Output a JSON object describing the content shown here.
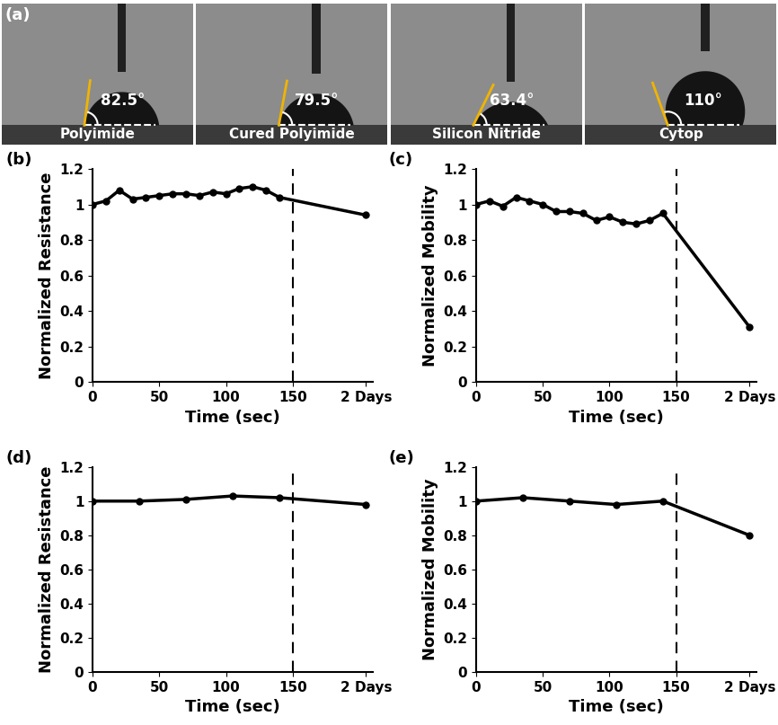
{
  "contact_angles": {
    "panel": "(a)",
    "samples": [
      {
        "name": "Polyimide",
        "angle": {
          "value": 82.5,
          "label": "82.5°"
        }
      },
      {
        "name": "Cured Polyimide",
        "angle": {
          "value": 79.5,
          "label": "79.5°"
        }
      },
      {
        "name": "Silicon Nitride",
        "angle": {
          "value": 63.4,
          "label": "63.4°"
        }
      },
      {
        "name": "Cytop",
        "angle": {
          "value": 110,
          "label": "110°"
        }
      }
    ]
  },
  "chart_data": [
    {
      "type": "line",
      "panel": "(b)",
      "x_label": "Time (sec)",
      "y_label": "Normalized Resistance",
      "x": [
        0,
        10,
        20,
        30,
        40,
        50,
        60,
        70,
        80,
        90,
        100,
        110,
        120,
        130,
        140,
        205
      ],
      "values": [
        1.0,
        1.02,
        1.08,
        1.03,
        1.04,
        1.05,
        1.06,
        1.06,
        1.05,
        1.07,
        1.06,
        1.09,
        1.1,
        1.08,
        1.04,
        0.94
      ],
      "color": "#000000",
      "marker": "o",
      "line_style": "solid",
      "dashed_line_x": 150,
      "xlim": [
        0,
        210
      ],
      "xticks": [
        0,
        50,
        100,
        150,
        {
          "value": 205,
          "label": "2 Days"
        }
      ],
      "ylim": [
        0,
        1.2
      ],
      "yticks": [
        0,
        0.2,
        0.4,
        0.6,
        0.8,
        1,
        1.2
      ],
      "grid": false
    },
    {
      "type": "line",
      "panel": "(c)",
      "x_label": "Time (sec)",
      "y_label": "Normalized Mobility",
      "x": [
        0,
        10,
        20,
        30,
        40,
        50,
        60,
        70,
        80,
        90,
        100,
        110,
        120,
        130,
        140,
        205
      ],
      "values": [
        1.0,
        1.02,
        0.99,
        1.04,
        1.02,
        1.0,
        0.96,
        0.96,
        0.95,
        0.91,
        0.93,
        0.9,
        0.89,
        0.91,
        0.95,
        0.31
      ],
      "color": "#000000",
      "marker": "o",
      "line_style": "solid",
      "dashed_line_x": 150,
      "xlim": [
        0,
        210
      ],
      "xticks": [
        0,
        50,
        100,
        150,
        {
          "value": 205,
          "label": "2 Days"
        }
      ],
      "ylim": [
        0,
        1.2
      ],
      "yticks": [
        0,
        0.2,
        0.4,
        0.6,
        0.8,
        1,
        1.2
      ],
      "grid": false
    },
    {
      "type": "line",
      "panel": "(d)",
      "x_label": "Time (sec)",
      "y_label": "Normalized Resistance",
      "x": [
        0,
        35,
        70,
        105,
        140,
        205
      ],
      "values": [
        1.0,
        1.0,
        1.01,
        1.03,
        1.02,
        0.98
      ],
      "color": "#000000",
      "marker": "o",
      "line_style": "solid",
      "dashed_line_x": 150,
      "xlim": [
        0,
        210
      ],
      "xticks": [
        0,
        50,
        100,
        150,
        {
          "value": 205,
          "label": "2 Days"
        }
      ],
      "ylim": [
        0,
        1.2
      ],
      "yticks": [
        0,
        0.2,
        0.4,
        0.6,
        0.8,
        1,
        1.2
      ],
      "grid": false
    },
    {
      "type": "line",
      "panel": "(e)",
      "x_label": "Time (sec)",
      "y_label": "Normalized Mobility",
      "x": [
        0,
        35,
        70,
        105,
        140,
        205
      ],
      "values": [
        1.0,
        1.02,
        1.0,
        0.98,
        1.0,
        0.8
      ],
      "color": "#000000",
      "marker": "o",
      "line_style": "solid",
      "dashed_line_x": 150,
      "xlim": [
        0,
        210
      ],
      "xticks": [
        0,
        50,
        100,
        150,
        {
          "value": 205,
          "label": "2 Days"
        }
      ],
      "ylim": [
        0,
        1.2
      ],
      "yticks": [
        0,
        0.2,
        0.4,
        0.6,
        0.8,
        1,
        1.2
      ],
      "grid": false
    }
  ]
}
